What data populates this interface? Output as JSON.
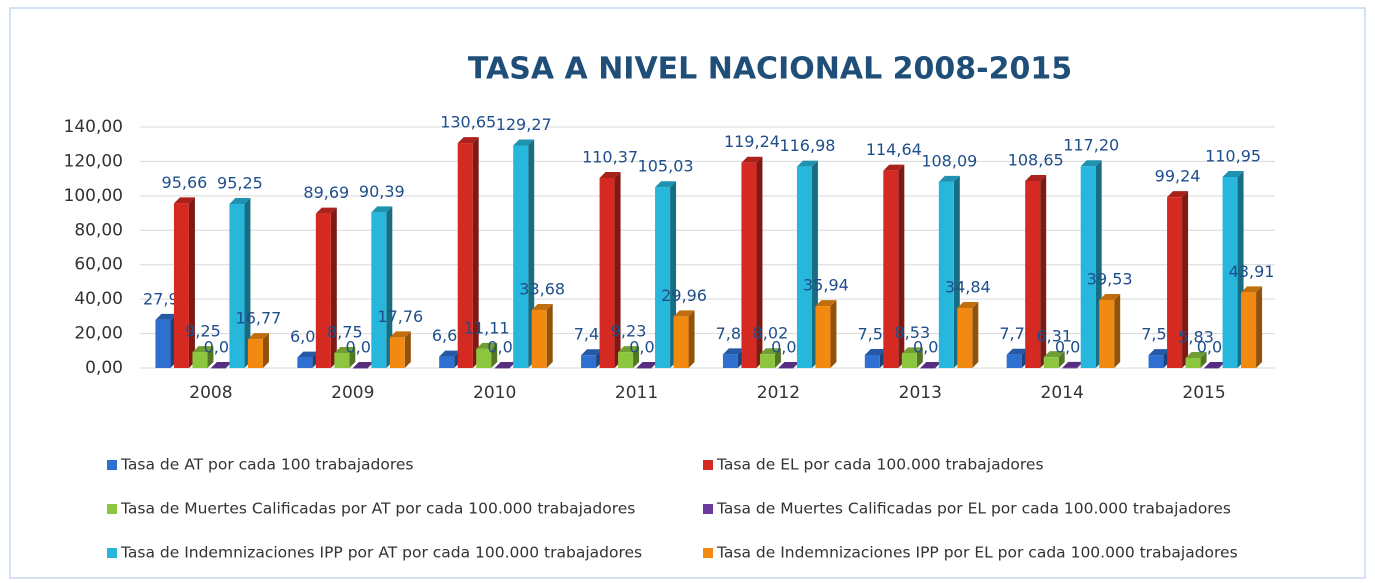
{
  "chart_data": {
    "type": "bar",
    "title": "TASA A NIVEL NACIONAL 2008-2015",
    "categories": [
      "2008",
      "2009",
      "2010",
      "2011",
      "2012",
      "2013",
      "2014",
      "2015"
    ],
    "series": [
      {
        "name": "Tasa de AT por cada 100 trabajadores",
        "color": "#2e6fd0",
        "values": [
          27.94,
          6.05,
          6.63,
          7.41,
          7.88,
          7.55,
          7.71,
          7.5
        ],
        "value_labels": [
          "27,94",
          "6,05",
          "6,63",
          "7,41",
          "7,88",
          "7,55",
          "7,71",
          "7,50"
        ]
      },
      {
        "name": "Tasa de EL por cada 100.000 trabajadores",
        "color": "#d42a22",
        "values": [
          95.66,
          89.69,
          130.65,
          110.37,
          119.24,
          114.64,
          108.65,
          99.24
        ],
        "value_labels": [
          "95,66",
          "89,69",
          "130,65",
          "110,37",
          "119,24",
          "114,64",
          "108,65",
          "99,24"
        ]
      },
      {
        "name": "Tasa de Muertes Calificadas por AT por cada 100.000 trabajadores",
        "color": "#8cc63e",
        "values": [
          9.25,
          8.75,
          11.11,
          9.23,
          8.02,
          8.53,
          6.31,
          5.83
        ],
        "value_labels": [
          "9,25",
          "8,75",
          "11,11",
          "9,23",
          "8,02",
          "8,53",
          "6,31",
          "5,83"
        ]
      },
      {
        "name": "Tasa de Muertes Calificadas por EL por cada 100.000 trabajadores",
        "color": "#6a3aa0",
        "values": [
          0.02,
          0.0,
          0.03,
          0.01,
          0.02,
          0.02,
          0.06,
          0.03
        ],
        "value_labels": [
          "0,02",
          "0,00",
          "0,03",
          "0,01",
          "0,02",
          "0,02",
          "0,06",
          "0,03"
        ]
      },
      {
        "name": "Tasa de Indemnizaciones IPP por AT por cada 100.000 trabajadores",
        "color": "#27b6dc",
        "values": [
          95.25,
          90.39,
          129.27,
          105.03,
          116.98,
          108.09,
          117.2,
          110.95
        ],
        "value_labels": [
          "95,25",
          "90,39",
          "129,27",
          "105,03",
          "116,98",
          "108,09",
          "117,20",
          "110,95"
        ]
      },
      {
        "name": "Tasa de Indemnizaciones IPP por EL por cada 100.000 trabajadores",
        "color": "#f28a12",
        "values": [
          16.77,
          17.76,
          33.68,
          29.96,
          35.94,
          34.84,
          39.53,
          43.91
        ],
        "value_labels": [
          "16,77",
          "17,76",
          "33,68",
          "29,96",
          "35,94",
          "34,84",
          "39,53",
          "43,91"
        ]
      }
    ],
    "ylim": [
      0,
      140
    ],
    "yticks": [
      {
        "value": 0,
        "label": "0,00"
      },
      {
        "value": 20,
        "label": "20,00"
      },
      {
        "value": 40,
        "label": "40,00"
      },
      {
        "value": 60,
        "label": "60,00"
      },
      {
        "value": 80,
        "label": "80,00"
      },
      {
        "value": 100,
        "label": "100,00"
      },
      {
        "value": 120,
        "label": "120,00"
      },
      {
        "value": 140,
        "label": "140,00"
      }
    ],
    "grid": true
  }
}
